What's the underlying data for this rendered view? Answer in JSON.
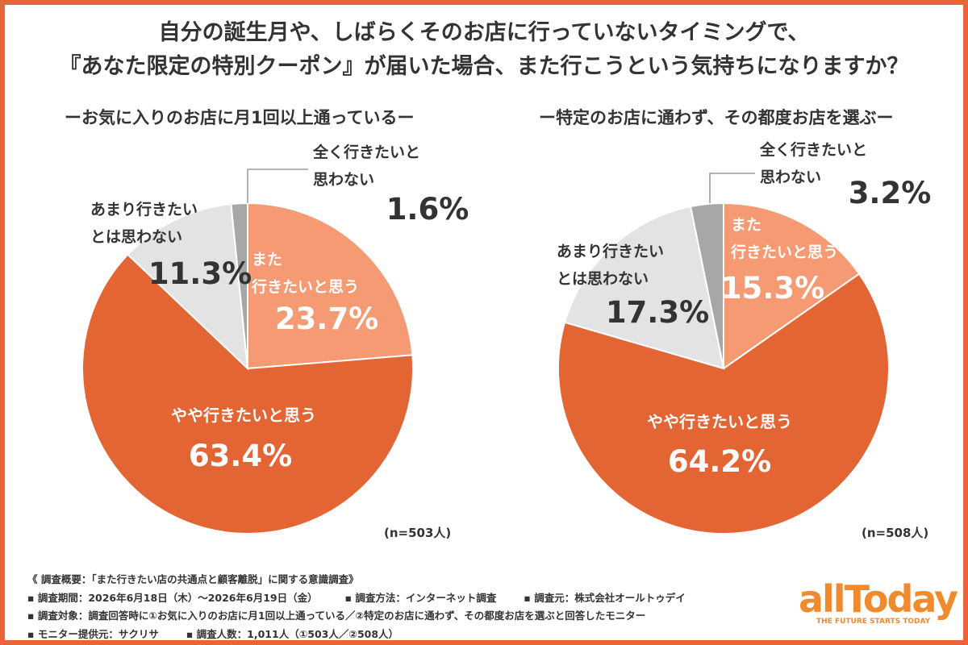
{
  "title": {
    "line1": "自分の誕生月や、しばらくそのお店に行っていないタイミングで、",
    "line2": "『あなた限定の特別クーポン』が届いた場合、また行こうという気持ちになりますか？"
  },
  "colors": {
    "frame": "#e8653a",
    "slice_mata": "#f59a72",
    "slice_yaya": "#e46534",
    "slice_amari": "#e3e3e3",
    "slice_mattaku": "#a7a7a7"
  },
  "chart_data": [
    {
      "type": "pie",
      "title": "ーお気に入りのお店に月1回以上通っているー",
      "note": "(n=503人)",
      "slices": [
        {
          "label_lines": [
            "また",
            "行きたいと思う"
          ],
          "value": 23.7,
          "value_label": "23.7%"
        },
        {
          "label_lines": [
            "やや行きたいと思う"
          ],
          "value": 63.4,
          "value_label": "63.4%"
        },
        {
          "label_lines": [
            "あまり行きたい",
            "とは思わない"
          ],
          "value": 11.3,
          "value_label": "11.3%"
        },
        {
          "label_lines": [
            "全く行きたいと",
            "思わない"
          ],
          "value": 1.6,
          "value_label": "1.6%"
        }
      ]
    },
    {
      "type": "pie",
      "title": "ー特定のお店に通わず、その都度お店を選ぶー",
      "note": "(n=508人)",
      "slices": [
        {
          "label_lines": [
            "また",
            "行きたいと思う"
          ],
          "value": 15.3,
          "value_label": "15.3%"
        },
        {
          "label_lines": [
            "やや行きたいと思う"
          ],
          "value": 64.2,
          "value_label": "64.2%"
        },
        {
          "label_lines": [
            "あまり行きたい",
            "とは思わない"
          ],
          "value": 17.3,
          "value_label": "17.3%"
        },
        {
          "label_lines": [
            "全く行きたいと",
            "思わない"
          ],
          "value": 3.2,
          "value_label": "3.2%"
        }
      ]
    }
  ],
  "footer": {
    "line1": "《 調査概要：「また行きたい店の共通点と顧客離脱」に関する意識調査》",
    "period": "▪ 調査期間：2026年6月18日（木）～2026年6月19日（金）",
    "method": "▪ 調査方法：インターネット調査",
    "source": "▪ 調査元：株式会社オールトゥデイ",
    "target": "▪ 調査対象：調査回答時に①お気に入りのお店に月1回以上通っている／②特定のお店に通わず、その都度お店を選ぶと回答したモニター",
    "provider": "▪ モニター提供元：サクリサ",
    "count": "▪ 調査人数：1,011人（①503人／②508人）"
  },
  "logo": {
    "text": "allToday",
    "tagline": "THE FUTURE STARTS TODAY"
  }
}
